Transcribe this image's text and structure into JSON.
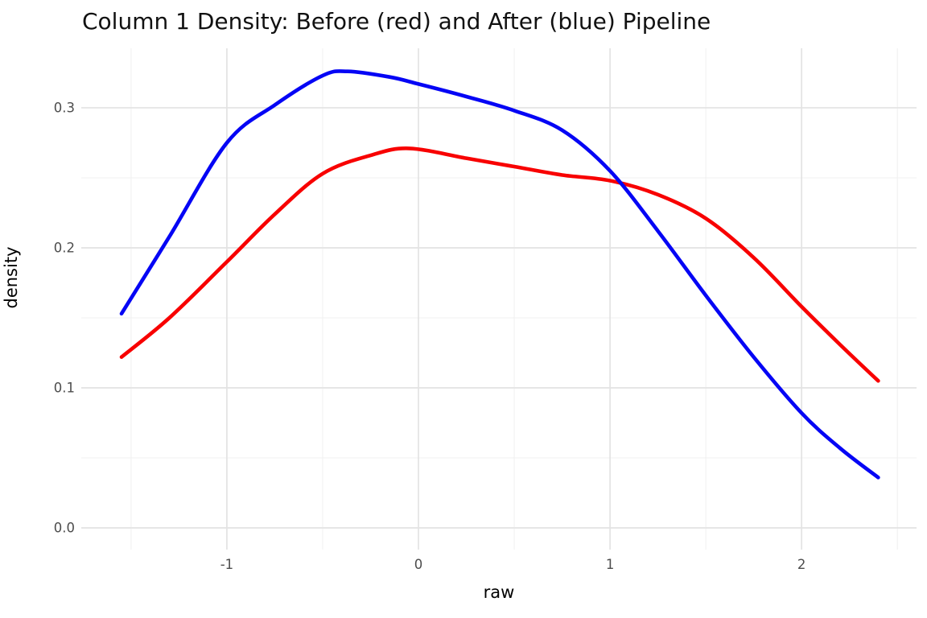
{
  "title": "Column 1 Density: Before (red) and After (blue) Pipeline",
  "chart_data": {
    "type": "line",
    "title": "Column 1 Density: Before (red) and After (blue) Pipeline",
    "xlabel": "raw",
    "ylabel": "density",
    "xlim": [
      -1.76,
      2.6
    ],
    "ylim": [
      -0.0155,
      0.3425
    ],
    "grid": "major and minor gridlines, no legend, white panel",
    "legend_position": "none",
    "x_major_ticks": [
      -1,
      0,
      1,
      2
    ],
    "x_tick_labels": [
      "-1",
      "0",
      "1",
      "2"
    ],
    "x_minor_gridlines": [
      -1.5,
      -0.5,
      0.5,
      1.5,
      2.5
    ],
    "y_major_ticks": [
      0.0,
      0.1,
      0.2,
      0.3
    ],
    "y_tick_labels": [
      "0.0",
      "0.1",
      "0.2",
      "0.3"
    ],
    "y_minor_gridlines": [
      0.05,
      0.15,
      0.25
    ],
    "series": [
      {
        "name": "Before Pipeline",
        "color": "#f80000",
        "x": [
          -1.55,
          -1.3,
          -1.0,
          -0.75,
          -0.5,
          -0.25,
          -0.05,
          0.25,
          0.5,
          0.75,
          1.0,
          1.25,
          1.5,
          1.75,
          2.0,
          2.2,
          2.4
        ],
        "y": [
          0.122,
          0.15,
          0.19,
          0.224,
          0.253,
          0.266,
          0.271,
          0.264,
          0.258,
          0.252,
          0.248,
          0.238,
          0.221,
          0.193,
          0.158,
          0.131,
          0.105
        ]
      },
      {
        "name": "After Pipeline",
        "color": "#0505f5",
        "x": [
          -1.55,
          -1.3,
          -1.0,
          -0.75,
          -0.5,
          -0.37,
          -0.15,
          0.0,
          0.25,
          0.5,
          0.75,
          1.0,
          1.25,
          1.5,
          1.75,
          2.0,
          2.2,
          2.4
        ],
        "y": [
          0.153,
          0.208,
          0.275,
          0.302,
          0.323,
          0.326,
          0.322,
          0.317,
          0.308,
          0.298,
          0.284,
          0.255,
          0.212,
          0.166,
          0.122,
          0.082,
          0.057,
          0.036
        ]
      }
    ],
    "annotations": {
      "curve_crossing": {
        "x": 1.06,
        "y": 0.246
      },
      "blue_peak": {
        "x": -0.37,
        "y": 0.326
      },
      "red_peak": {
        "x": -0.05,
        "y": 0.271
      }
    }
  },
  "colors": {
    "background": "#ffffff",
    "major_grid": "#e3e3e3",
    "minor_grid": "#f0f0f0",
    "tick_label": "#4d4d4d",
    "title_text": "#111111",
    "axis_title_text": "#000000",
    "before_line": "#f80000",
    "after_line": "#0505f5"
  }
}
